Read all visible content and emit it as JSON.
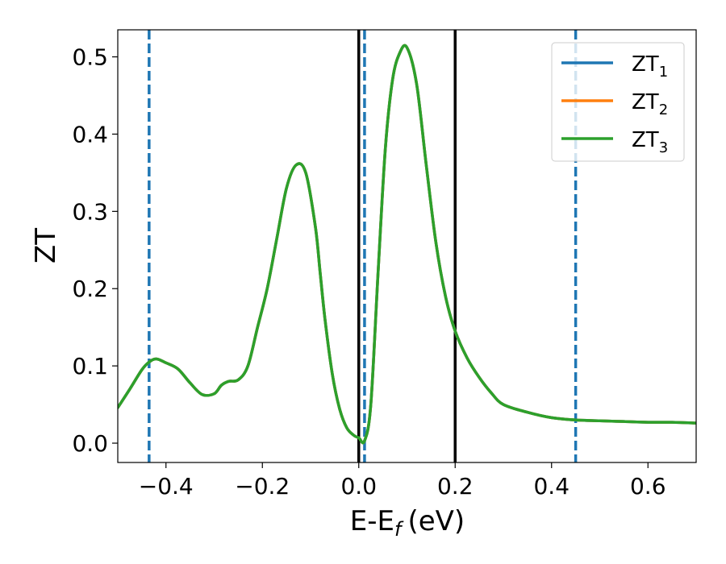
{
  "chart_data": {
    "type": "line",
    "xlabel": "E-E",
    "xlabel_sub": "f",
    "xlabel_unit": "(eV)",
    "ylabel": "ZT",
    "xlim": [
      -0.5,
      0.7
    ],
    "ylim": [
      -0.025,
      0.535
    ],
    "xticks": [
      -0.4,
      -0.2,
      0.0,
      0.2,
      0.4,
      0.6
    ],
    "xtick_labels": [
      "−0.4",
      "−0.2",
      "0.0",
      "0.2",
      "0.4",
      "0.6"
    ],
    "yticks": [
      0.0,
      0.1,
      0.2,
      0.3,
      0.4,
      0.5
    ],
    "ytick_labels": [
      "0.0",
      "0.1",
      "0.2",
      "0.3",
      "0.4",
      "0.5"
    ],
    "grid": false,
    "legend_position": "top-right",
    "x": [
      -0.5,
      -0.475,
      -0.45,
      -0.435,
      -0.42,
      -0.4,
      -0.375,
      -0.35,
      -0.325,
      -0.3,
      -0.285,
      -0.27,
      -0.25,
      -0.23,
      -0.21,
      -0.19,
      -0.17,
      -0.15,
      -0.13,
      -0.11,
      -0.09,
      -0.08,
      -0.07,
      -0.055,
      -0.04,
      -0.025,
      -0.01,
      0.0,
      0.012,
      0.025,
      0.04,
      0.055,
      0.07,
      0.085,
      0.1,
      0.12,
      0.14,
      0.16,
      0.18,
      0.2,
      0.225,
      0.25,
      0.275,
      0.3,
      0.35,
      0.4,
      0.45,
      0.5,
      0.55,
      0.6,
      0.65,
      0.7
    ],
    "series": [
      {
        "name": "ZT",
        "name_sub": "1",
        "color": "#1f77b4",
        "values": [
          0.046,
          0.07,
          0.095,
          0.105,
          0.109,
          0.104,
          0.096,
          0.078,
          0.063,
          0.064,
          0.075,
          0.08,
          0.082,
          0.1,
          0.15,
          0.2,
          0.265,
          0.33,
          0.36,
          0.35,
          0.28,
          0.22,
          0.16,
          0.09,
          0.045,
          0.02,
          0.01,
          0.007,
          0.003,
          0.05,
          0.22,
          0.38,
          0.47,
          0.505,
          0.512,
          0.465,
          0.36,
          0.26,
          0.19,
          0.145,
          0.11,
          0.085,
          0.065,
          0.05,
          0.04,
          0.033,
          0.03,
          0.029,
          0.028,
          0.027,
          0.027,
          0.026
        ]
      },
      {
        "name": "ZT",
        "name_sub": "2",
        "color": "#ff7f0e",
        "values": [
          0.046,
          0.07,
          0.095,
          0.105,
          0.109,
          0.104,
          0.096,
          0.078,
          0.063,
          0.064,
          0.075,
          0.08,
          0.082,
          0.1,
          0.15,
          0.2,
          0.265,
          0.33,
          0.36,
          0.35,
          0.28,
          0.22,
          0.16,
          0.09,
          0.045,
          0.02,
          0.01,
          0.007,
          0.003,
          0.05,
          0.22,
          0.38,
          0.47,
          0.505,
          0.512,
          0.465,
          0.36,
          0.26,
          0.19,
          0.145,
          0.11,
          0.085,
          0.065,
          0.05,
          0.04,
          0.033,
          0.03,
          0.029,
          0.028,
          0.027,
          0.027,
          0.026
        ]
      },
      {
        "name": "ZT",
        "name_sub": "3",
        "color": "#2ca02c",
        "values": [
          0.046,
          0.07,
          0.095,
          0.105,
          0.109,
          0.104,
          0.096,
          0.078,
          0.063,
          0.064,
          0.075,
          0.08,
          0.082,
          0.1,
          0.15,
          0.2,
          0.265,
          0.33,
          0.36,
          0.35,
          0.28,
          0.22,
          0.16,
          0.09,
          0.045,
          0.02,
          0.01,
          0.007,
          0.003,
          0.05,
          0.22,
          0.38,
          0.47,
          0.505,
          0.512,
          0.465,
          0.36,
          0.26,
          0.19,
          0.145,
          0.11,
          0.085,
          0.065,
          0.05,
          0.04,
          0.033,
          0.03,
          0.029,
          0.028,
          0.027,
          0.027,
          0.026
        ]
      }
    ],
    "vlines_solid": {
      "color": "#000000",
      "x": [
        0.0,
        0.2
      ]
    },
    "vlines_dashed": {
      "color": "#1f77b4",
      "x": [
        -0.435,
        0.012,
        0.45
      ]
    }
  }
}
